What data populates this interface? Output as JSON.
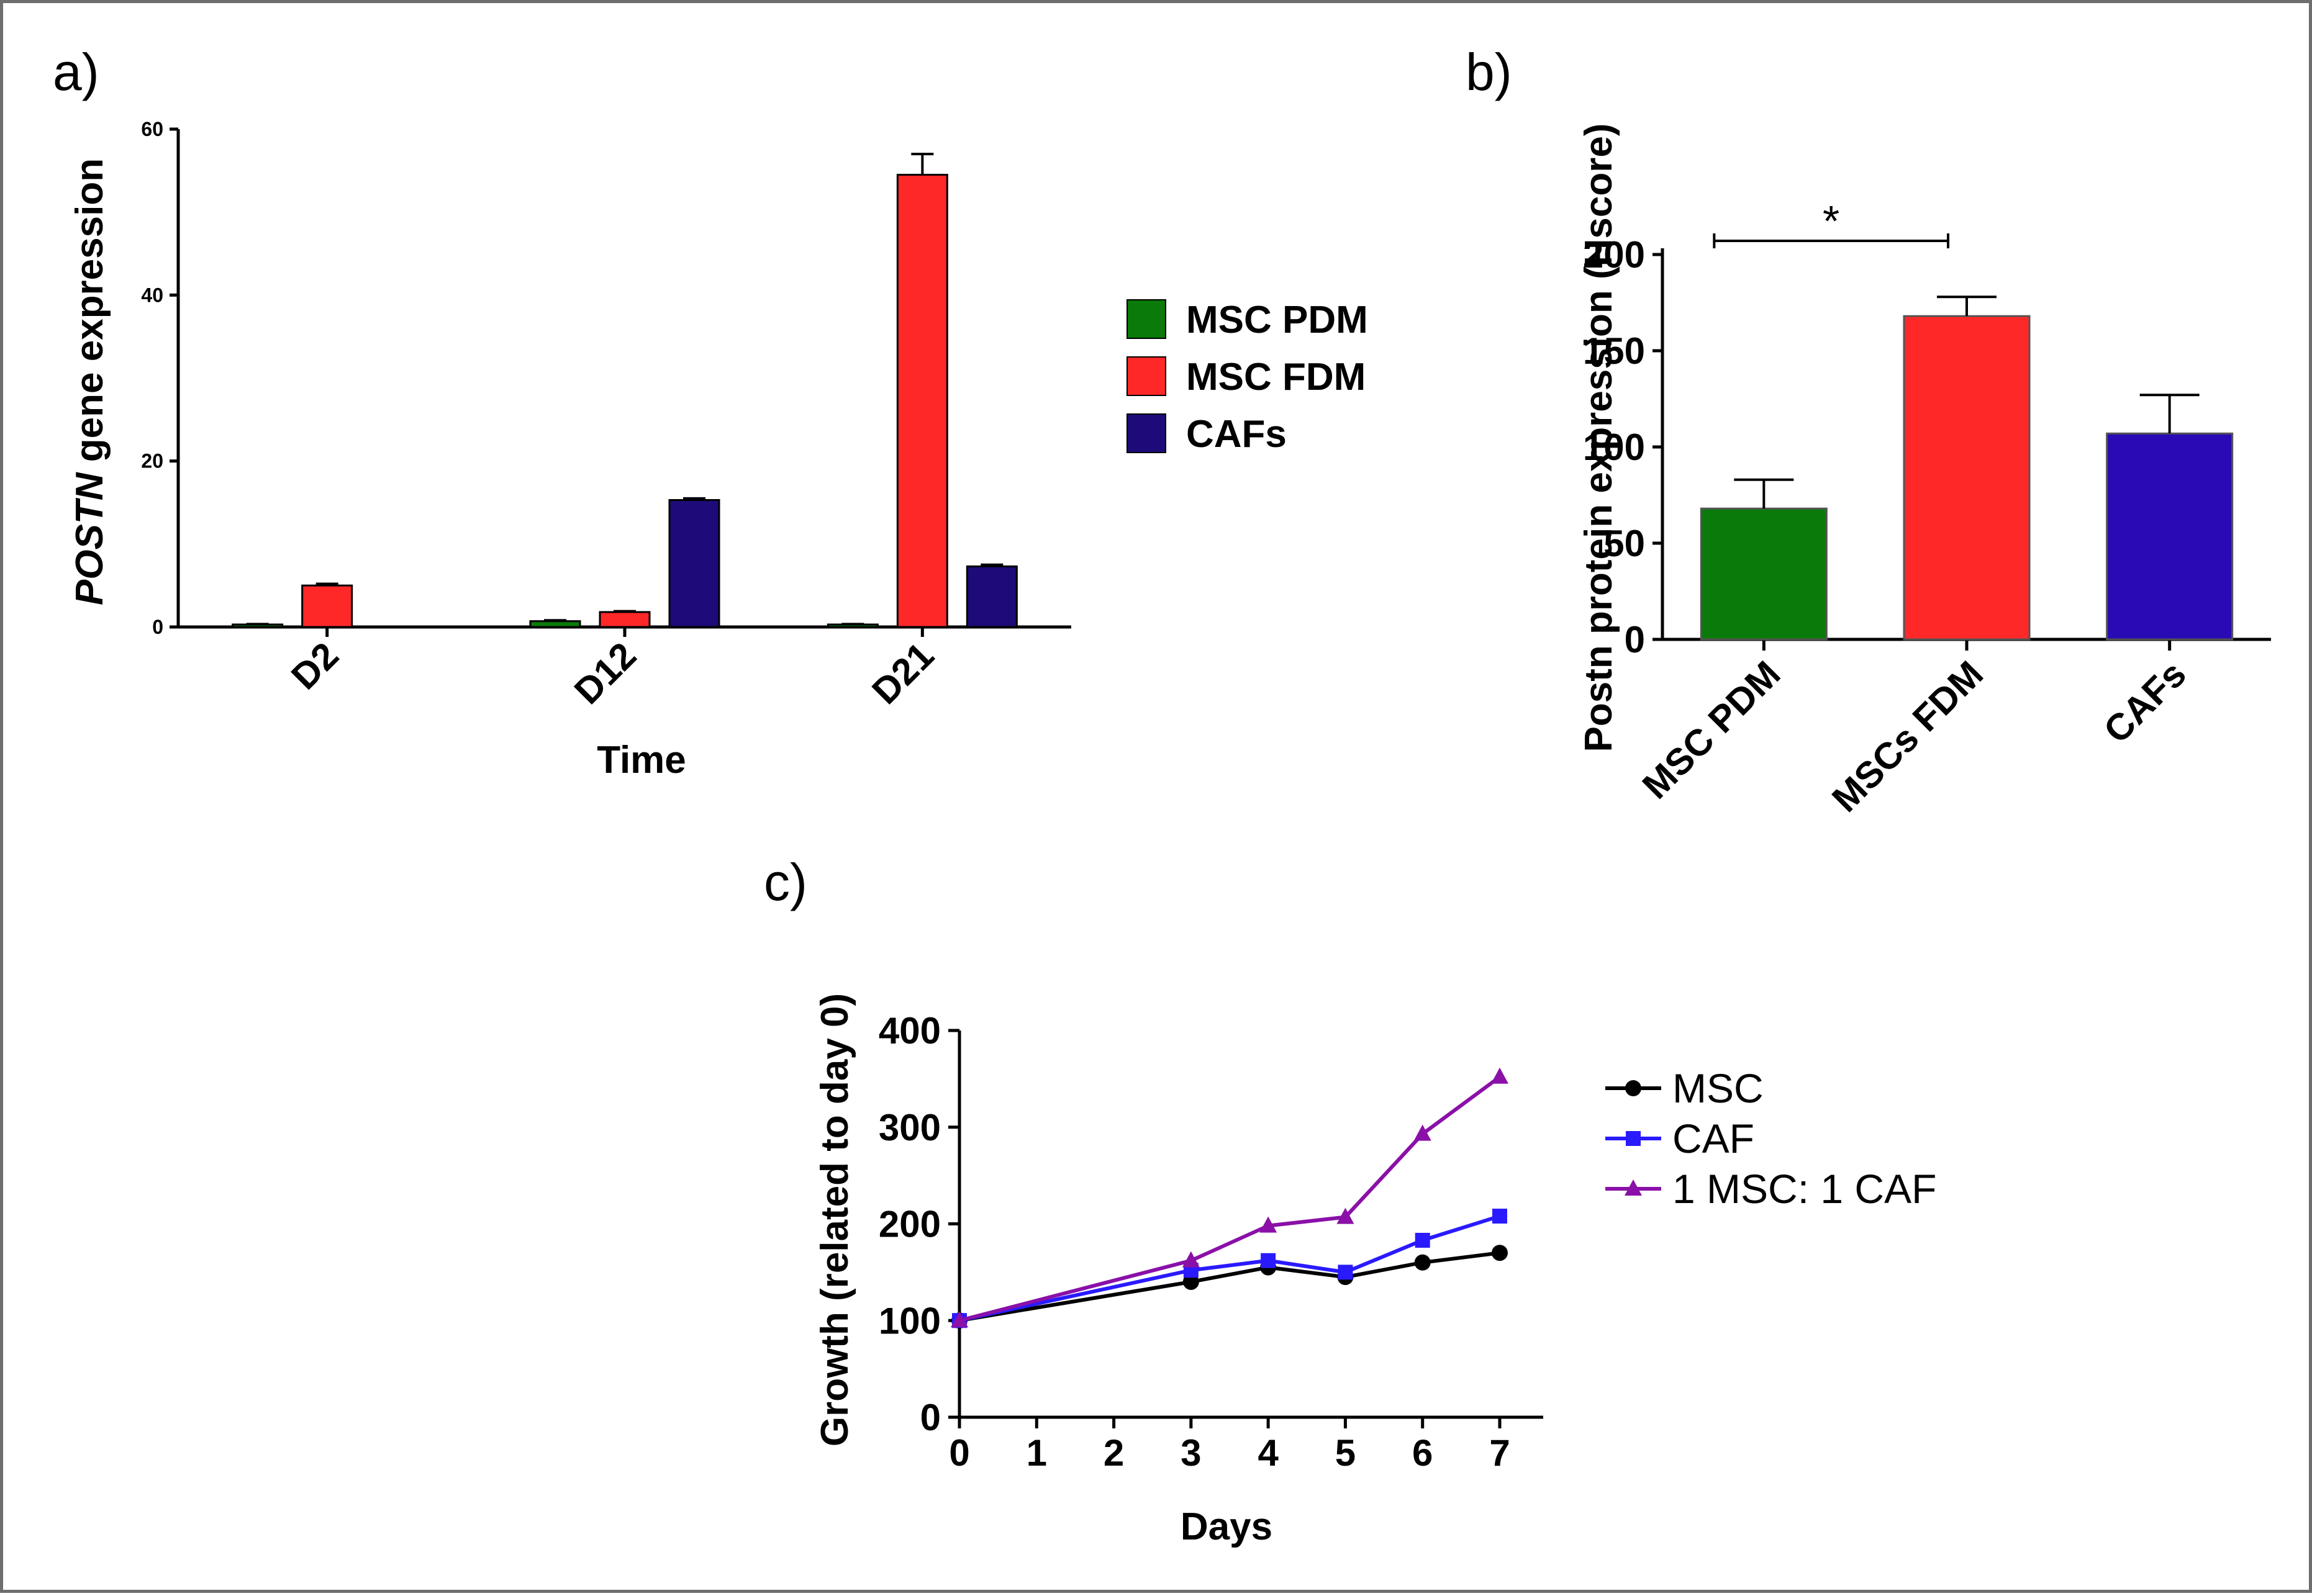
{
  "figure": {
    "panels": [
      {
        "id": "a",
        "label": "a)",
        "chart_data": {
          "type": "bar",
          "categories": [
            "D2",
            "D12",
            "D21"
          ],
          "series": [
            {
              "name": "MSC PDM",
              "color": "#0a7a0a",
              "values": [
                0.3,
                0.7,
                0.3
              ],
              "errors": [
                0.05,
                0.1,
                0.05
              ]
            },
            {
              "name": "MSC FDM",
              "color": "#ff2828",
              "values": [
                5.0,
                1.8,
                54.5
              ],
              "errors": [
                0.2,
                0.1,
                2.5
              ]
            },
            {
              "name": "CAFs",
              "color": "#1e0a78",
              "values": [
                0,
                15.3,
                7.3
              ],
              "errors": [
                0,
                0.2,
                0.2
              ]
            }
          ],
          "xlabel": "Time",
          "ylabel_italic": "POSTN",
          "ylabel_rest": " gene expression",
          "ylim": [
            0,
            60
          ],
          "yticks": [
            0,
            20,
            40,
            60
          ],
          "legend_position": "right"
        }
      },
      {
        "id": "b",
        "label": "b)",
        "chart_data": {
          "type": "bar",
          "categories": [
            "MSC PDM",
            "MSCs FDM",
            "CAFs"
          ],
          "values": [
            68,
            168,
            107
          ],
          "errors": [
            15,
            10,
            20
          ],
          "colors": [
            "#0a7a0a",
            "#ff2828",
            "#2a0ab4"
          ],
          "ylabel": "Postn protein expression (Hscore)",
          "ylim": [
            0,
            200
          ],
          "yticks": [
            0,
            50,
            100,
            150,
            200
          ],
          "significance": {
            "from": "MSC PDM",
            "to": "MSCs FDM",
            "text": "*"
          }
        }
      },
      {
        "id": "c",
        "label": "c)",
        "chart_data": {
          "type": "line",
          "x": [
            0,
            3,
            4,
            5,
            6,
            7
          ],
          "series": [
            {
              "name": "MSC",
              "color": "#000000",
              "marker": "circle",
              "values": [
                100,
                140,
                155,
                145,
                160,
                170
              ]
            },
            {
              "name": "CAF",
              "color": "#2a1aff",
              "marker": "square",
              "values": [
                100,
                152,
                162,
                150,
                183,
                208
              ]
            },
            {
              "name": "1 MSC: 1 CAF",
              "color": "#8a10a8",
              "marker": "triangle",
              "values": [
                100,
                162,
                198,
                207,
                293,
                352
              ]
            }
          ],
          "xlabel": "Days",
          "ylabel": "Growth (related to day 0)",
          "xlim": [
            0,
            7
          ],
          "xticks": [
            0,
            1,
            2,
            3,
            4,
            5,
            6,
            7
          ],
          "ylim": [
            0,
            400
          ],
          "yticks": [
            0,
            100,
            200,
            300,
            400
          ],
          "legend_position": "right"
        }
      }
    ]
  }
}
